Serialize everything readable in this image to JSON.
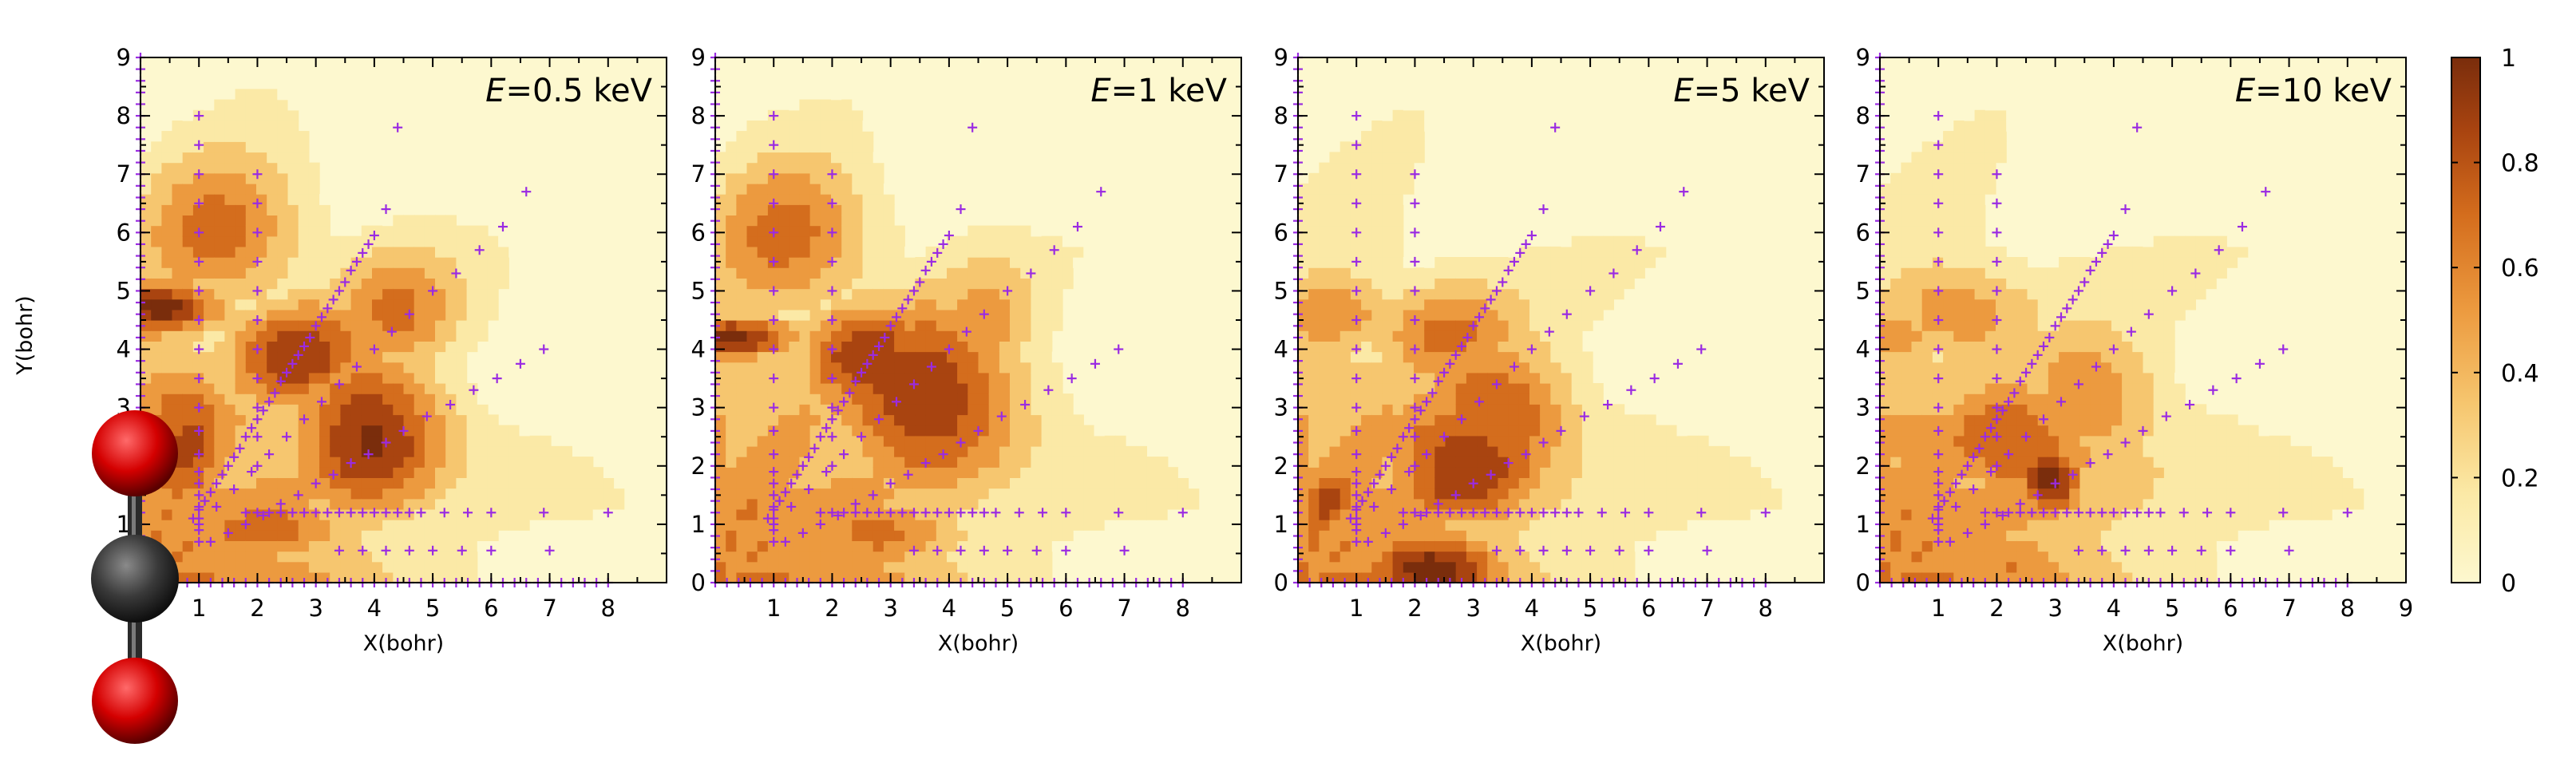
{
  "chart_data": {
    "type": "heatmap",
    "xlabel": "X(bohr)",
    "ylabel": "Y(bohr)",
    "xlim": [
      0,
      9
    ],
    "ylim": [
      0,
      9
    ],
    "x_ticks": [
      "1",
      "2",
      "3",
      "4",
      "5",
      "6",
      "7",
      "8"
    ],
    "x_ticks_last_panel": [
      "1",
      "2",
      "3",
      "4",
      "5",
      "6",
      "7",
      "8",
      "9"
    ],
    "y_ticks": [
      "0",
      "1",
      "2",
      "3",
      "4",
      "5",
      "6",
      "7",
      "8",
      "9"
    ],
    "colorbar": {
      "min": 0,
      "max": 1,
      "ticks": [
        "0",
        "0.2",
        "0.4",
        "0.6",
        "0.8",
        "1"
      ],
      "colors": [
        "#fdf8cf",
        "#fbe9a6",
        "#f6c66f",
        "#ec9a3f",
        "#d46d1d",
        "#a94410",
        "#7a2d0c"
      ]
    },
    "marker_color": "#9a2be2",
    "panels": [
      {
        "name": "panel-0-5kev",
        "label": "E=0.5 keV",
        "label_italic": "E",
        "label_rest": "=0.5 keV",
        "hotspots": [
          [
            0.4,
            4.7,
            1.2,
            0.5,
            0.95
          ],
          [
            3.9,
            2.6,
            1.4,
            1.5,
            0.95
          ],
          [
            2.7,
            3.9,
            1.4,
            1.0,
            0.85
          ],
          [
            0.7,
            2.5,
            1.0,
            1.6,
            0.8
          ],
          [
            1.4,
            6.0,
            1.5,
            1.4,
            0.65
          ],
          [
            4.4,
            4.6,
            1.2,
            1.2,
            0.6
          ],
          [
            2.2,
            0.9,
            1.6,
            0.6,
            0.7
          ]
        ]
      },
      {
        "name": "panel-1kev",
        "label": "E=1 keV",
        "label_italic": "E",
        "label_rest": "=1 keV",
        "hotspots": [
          [
            0.4,
            4.2,
            1.2,
            0.4,
            0.95
          ],
          [
            3.6,
            3.2,
            1.7,
            1.6,
            0.95
          ],
          [
            2.6,
            3.9,
            1.3,
            1.0,
            0.85
          ],
          [
            1.3,
            5.9,
            1.5,
            1.4,
            0.65
          ],
          [
            2.8,
            0.8,
            1.6,
            0.6,
            0.7
          ],
          [
            0.8,
            1.2,
            1.0,
            0.8,
            0.6
          ],
          [
            4.6,
            4.4,
            1.0,
            1.2,
            0.5
          ]
        ]
      },
      {
        "name": "panel-5kev",
        "label": "E=5 keV",
        "label_italic": "E",
        "label_rest": "=5 keV",
        "hotspots": [
          [
            2.3,
            0.3,
            1.4,
            0.7,
            1.0
          ],
          [
            2.8,
            2.1,
            1.5,
            1.3,
            0.9
          ],
          [
            3.4,
            2.9,
            1.4,
            1.3,
            0.8
          ],
          [
            0.5,
            1.4,
            0.8,
            0.9,
            0.75
          ],
          [
            0.7,
            4.6,
            1.2,
            0.8,
            0.55
          ],
          [
            2.5,
            4.3,
            1.5,
            1.0,
            0.6
          ]
        ]
      },
      {
        "name": "panel-10kev",
        "label": "E=10 keV",
        "label_italic": "E",
        "label_rest": "=10 keV",
        "hotspots": [
          [
            2.9,
            1.8,
            0.6,
            0.7,
            1.0
          ],
          [
            2.3,
            2.4,
            1.5,
            1.1,
            0.8
          ],
          [
            0.6,
            2.4,
            1.1,
            1.3,
            0.55
          ],
          [
            1.4,
            4.6,
            1.4,
            1.0,
            0.55
          ],
          [
            2.2,
            0.4,
            1.4,
            0.6,
            0.6
          ],
          [
            3.6,
            3.2,
            1.3,
            1.2,
            0.6
          ],
          [
            0.4,
            4.2,
            0.8,
            0.5,
            0.5
          ]
        ]
      }
    ],
    "marker_series": [
      {
        "name": "y-axis-column",
        "x": [
          0,
          0,
          0,
          0,
          0,
          0,
          0,
          0,
          0,
          0,
          0,
          0,
          0,
          0,
          0,
          0,
          0,
          0,
          0,
          0,
          0,
          0,
          0,
          0,
          0,
          0,
          0,
          0,
          0,
          0,
          0,
          0,
          0,
          0,
          0,
          0,
          0,
          0,
          0,
          0,
          0,
          0,
          0,
          0,
          0,
          0
        ],
        "y": [
          0.2,
          0.4,
          0.6,
          0.8,
          1.0,
          1.2,
          1.4,
          1.6,
          1.8,
          2.0,
          2.2,
          2.4,
          2.6,
          2.8,
          3.0,
          3.2,
          3.4,
          3.6,
          3.8,
          4.0,
          4.2,
          4.4,
          4.6,
          4.8,
          5.0,
          5.2,
          5.4,
          5.6,
          5.8,
          6.0,
          6.2,
          6.4,
          6.6,
          6.8,
          7.0,
          7.2,
          7.4,
          7.6,
          7.8,
          8.0,
          8.2,
          8.4,
          8.6,
          8.8,
          9.0,
          0.0
        ]
      },
      {
        "name": "x-axis-row",
        "x": [
          0.2,
          0.4,
          0.6,
          0.8,
          1.0,
          1.2,
          1.4,
          1.6,
          1.8,
          2.0,
          2.2,
          2.4,
          2.6,
          2.8,
          3.0,
          3.2,
          3.4,
          3.6,
          3.8,
          4.0,
          4.2,
          4.4,
          4.6,
          4.8,
          5.0,
          5.2,
          5.4,
          5.6,
          5.8,
          6.0,
          6.2,
          6.4,
          6.6,
          6.8,
          7.0,
          7.2,
          7.4,
          7.6,
          7.8,
          8.0
        ],
        "y": [
          0,
          0,
          0,
          0,
          0,
          0,
          0,
          0,
          0,
          0,
          0,
          0,
          0,
          0,
          0,
          0,
          0,
          0,
          0,
          0,
          0,
          0,
          0,
          0,
          0,
          0,
          0,
          0,
          0,
          0,
          0,
          0,
          0,
          0,
          0,
          0,
          0,
          0,
          0,
          0
        ]
      },
      {
        "name": "x1-column",
        "x": [
          1,
          1,
          1,
          1,
          1,
          1,
          1,
          1,
          1,
          1,
          1,
          1,
          1,
          1,
          1,
          1,
          1,
          1,
          1,
          1
        ],
        "y": [
          8.0,
          7.5,
          7.0,
          6.5,
          6.0,
          5.5,
          5.0,
          4.5,
          4.0,
          3.5,
          3.0,
          2.6,
          2.2,
          1.9,
          1.7,
          1.5,
          1.3,
          1.1,
          0.9,
          0.7
        ]
      },
      {
        "name": "x2-column",
        "x": [
          2,
          2,
          2,
          2,
          2,
          2,
          2,
          2,
          2,
          2,
          2
        ],
        "y": [
          7.0,
          6.5,
          6.0,
          5.5,
          5.0,
          4.5,
          4.0,
          3.5,
          3.0,
          2.5,
          2.0
        ]
      },
      {
        "name": "diagonal-60",
        "x": [
          0.9,
          1.0,
          1.1,
          1.2,
          1.3,
          1.4,
          1.5,
          1.6,
          1.7,
          1.8,
          1.9,
          2.0,
          2.1,
          2.2,
          2.3,
          2.4,
          2.5,
          2.6,
          2.7,
          2.8,
          2.9,
          3.0,
          3.1,
          3.2,
          3.3,
          3.4,
          3.5,
          3.6,
          3.7,
          3.8,
          3.9,
          4.0,
          4.2,
          4.4
        ],
        "y": [
          1.1,
          1.25,
          1.4,
          1.55,
          1.7,
          1.85,
          2.0,
          2.15,
          2.3,
          2.5,
          2.65,
          2.8,
          2.95,
          3.1,
          3.25,
          3.45,
          3.6,
          3.75,
          3.9,
          4.05,
          4.2,
          4.4,
          4.55,
          4.7,
          4.85,
          5.0,
          5.15,
          5.35,
          5.5,
          5.65,
          5.8,
          5.95,
          6.4,
          7.8
        ]
      },
      {
        "name": "diagonal-45",
        "x": [
          1.0,
          1.3,
          1.6,
          1.9,
          2.2,
          2.5,
          2.8,
          3.1,
          3.4,
          3.7,
          4.0,
          4.3,
          4.6,
          5.0,
          5.4,
          5.8,
          6.2,
          6.6
        ],
        "y": [
          1.0,
          1.3,
          1.6,
          1.9,
          2.2,
          2.5,
          2.8,
          3.1,
          3.4,
          3.7,
          4.0,
          4.3,
          4.6,
          5.0,
          5.3,
          5.7,
          6.1,
          6.7
        ]
      },
      {
        "name": "diagonal-30",
        "x": [
          1.2,
          1.5,
          1.8,
          2.1,
          2.4,
          2.7,
          3.0,
          3.3,
          3.6,
          3.9,
          4.2,
          4.5,
          4.9,
          5.3,
          5.7,
          6.1,
          6.5,
          6.9
        ],
        "y": [
          0.7,
          0.85,
          1.0,
          1.15,
          1.35,
          1.5,
          1.7,
          1.85,
          2.05,
          2.2,
          2.4,
          2.6,
          2.85,
          3.05,
          3.3,
          3.5,
          3.75,
          4.0
        ]
      },
      {
        "name": "y1-row",
        "x": [
          1.8,
          2.0,
          2.2,
          2.4,
          2.6,
          2.8,
          3.0,
          3.2,
          3.4,
          3.6,
          3.8,
          4.0,
          4.2,
          4.4,
          4.6,
          4.8,
          5.2,
          5.6,
          6.0,
          6.9,
          8.0
        ],
        "y": [
          1.2,
          1.2,
          1.2,
          1.2,
          1.2,
          1.2,
          1.2,
          1.2,
          1.2,
          1.2,
          1.2,
          1.2,
          1.2,
          1.2,
          1.2,
          1.2,
          1.2,
          1.2,
          1.2,
          1.2,
          1.2
        ]
      },
      {
        "name": "low-row",
        "x": [
          3.4,
          3.8,
          4.2,
          4.6,
          5.0,
          5.5,
          6.0,
          7.0
        ],
        "y": [
          0.55,
          0.55,
          0.55,
          0.55,
          0.55,
          0.55,
          0.55,
          0.55
        ]
      }
    ]
  }
}
